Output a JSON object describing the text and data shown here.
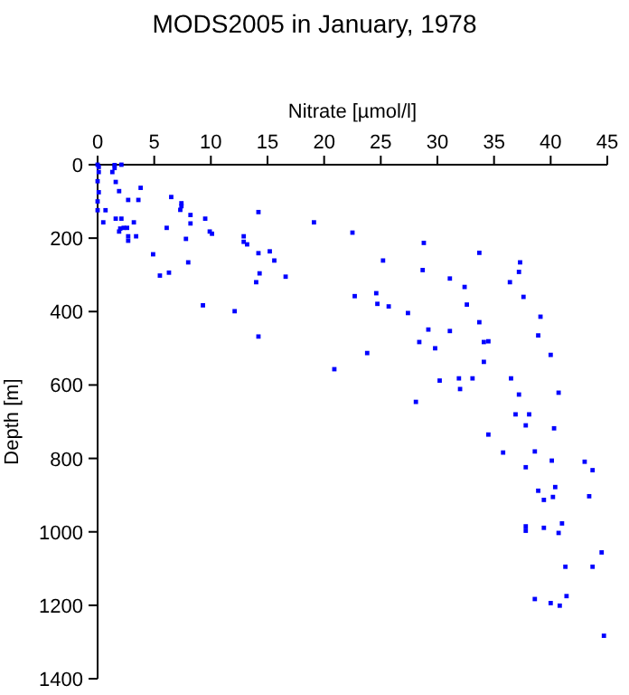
{
  "chart_data": {
    "type": "scatter",
    "title": "MODS2005 in January, 1978",
    "xlabel": "Nitrate [µmol/l]",
    "ylabel": "Depth [m]",
    "xlim": [
      0,
      45
    ],
    "ylim": [
      1400,
      0
    ],
    "xticks": [
      0,
      5,
      10,
      15,
      20,
      25,
      30,
      35,
      40,
      45
    ],
    "yticks": [
      0,
      200,
      400,
      600,
      800,
      1000,
      1200,
      1400
    ],
    "grid": false,
    "marker": "square",
    "series": [
      {
        "color": "#0000ff",
        "x": [
          0,
          0.1,
          0.1,
          0,
          0.1,
          0,
          0,
          0.7,
          0.5,
          1.5,
          1.5,
          1.3,
          1.6,
          1.9,
          2.1,
          1.6,
          2.1,
          1.9,
          2.0,
          2.3,
          2.6,
          2.7,
          2.7,
          2.7,
          3.2,
          3.4,
          3.6,
          3.8,
          4.9,
          5.5,
          6.1,
          6.3,
          6.5,
          7.4,
          7.4,
          7.3,
          8.2,
          8.2,
          7.8,
          8.0,
          9.5,
          9.9,
          10.1,
          9.3,
          12.1,
          12.9,
          12.9,
          13.2,
          14.2,
          14.2,
          14.3,
          14.0,
          14.2,
          15.2,
          15.6,
          16.6,
          19.1,
          20.9,
          22.5,
          28.8,
          33.7,
          25.2,
          37.3,
          28.7,
          37.2,
          31.1,
          36.4,
          32.4,
          24.6,
          22.7,
          24.7,
          25.7,
          32.6,
          37.6,
          27.4,
          39.1,
          33.7,
          29.2,
          31.1,
          38.9,
          28.4,
          34.1,
          34.5,
          29.8,
          23.8,
          40.0,
          34.1,
          31.9,
          33.1,
          36.5,
          30.2,
          32.0,
          37.2,
          40.7,
          28.1,
          36.9,
          38.1,
          37.8,
          40.3,
          34.5,
          35.8,
          38.6,
          40.1,
          43.0,
          43.7,
          37.8,
          40.4,
          38.9,
          39.4,
          40.2,
          43.4,
          37.8,
          37.8,
          39.4,
          41.0,
          40.7,
          44.5,
          41.3,
          43.7,
          38.6,
          40.0,
          40.8,
          41.4,
          44.7
        ],
        "values": [
          0,
          6,
          20,
          45,
          75,
          100,
          124,
          124,
          157,
          1,
          9,
          20,
          47,
          72,
          0,
          147,
          147,
          182,
          174,
          172,
          172,
          195,
          207,
          96,
          157,
          195,
          96,
          63,
          244,
          302,
          172,
          294,
          88,
          105,
          113,
          123,
          137,
          160,
          202,
          266,
          147,
          182,
          188,
          383,
          399,
          195,
          210,
          217,
          129,
          241,
          296,
          320,
          468,
          236,
          261,
          305,
          157,
          557,
          185,
          213,
          240,
          261,
          266,
          287,
          292,
          310,
          320,
          333,
          350,
          358,
          379,
          386,
          381,
          360,
          404,
          414,
          429,
          449,
          453,
          465,
          483,
          483,
          481,
          500,
          513,
          518,
          537,
          582,
          582,
          582,
          588,
          611,
          626,
          621,
          646,
          680,
          680,
          710,
          718,
          735,
          784,
          781,
          806,
          809,
          832,
          824,
          878,
          888,
          913,
          905,
          903,
          985,
          997,
          989,
          977,
          1003,
          1056,
          1095,
          1095,
          1183,
          1194,
          1201,
          1175,
          1283
        ]
      }
    ]
  }
}
